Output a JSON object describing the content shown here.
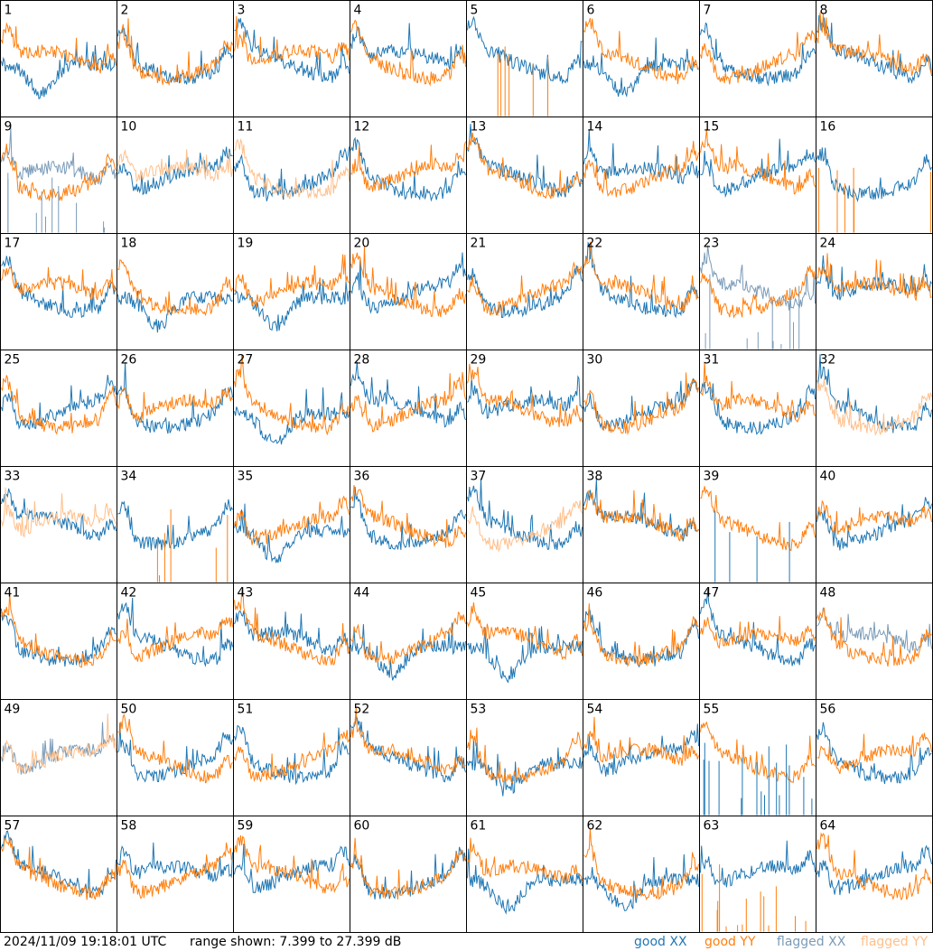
{
  "chart_data": {
    "type": "line",
    "panel_grid": "8x8",
    "panels": [
      1,
      2,
      3,
      4,
      5,
      6,
      7,
      8,
      9,
      10,
      11,
      12,
      13,
      14,
      15,
      16,
      17,
      18,
      19,
      20,
      21,
      22,
      23,
      24,
      25,
      26,
      27,
      28,
      29,
      30,
      31,
      32,
      33,
      34,
      35,
      36,
      37,
      38,
      39,
      40,
      41,
      42,
      43,
      44,
      45,
      46,
      47,
      48,
      49,
      50,
      51,
      52,
      53,
      54,
      55,
      56,
      57,
      58,
      59,
      60,
      61,
      62,
      63,
      64
    ],
    "y_range_db": [
      7.399,
      27.399
    ],
    "series": [
      {
        "name": "good XX",
        "color": "#1f77b4"
      },
      {
        "name": "good YY",
        "color": "#ff7f0e"
      },
      {
        "name": "flagged XX",
        "color": "#7a9bb8"
      },
      {
        "name": "flagged YY",
        "color": "#ffbf8a"
      }
    ],
    "flags": {
      "9": "XX",
      "10": "YY",
      "11": "YY",
      "23": "XX",
      "32": "YY",
      "33": "YY",
      "37": "YY",
      "48": "XX",
      "49": "XY"
    },
    "spikes": {
      "5": "YY",
      "16": "YY",
      "34": "YY",
      "39": "XX",
      "55": "XX",
      "63": "YY"
    }
  },
  "footer": {
    "timestamp": "2024/11/09 19:18:01 UTC",
    "range": "range shown: 7.399 to 27.399 dB",
    "legend": [
      "good XX",
      "good YY",
      "flagged XX",
      "flagged YY"
    ]
  }
}
